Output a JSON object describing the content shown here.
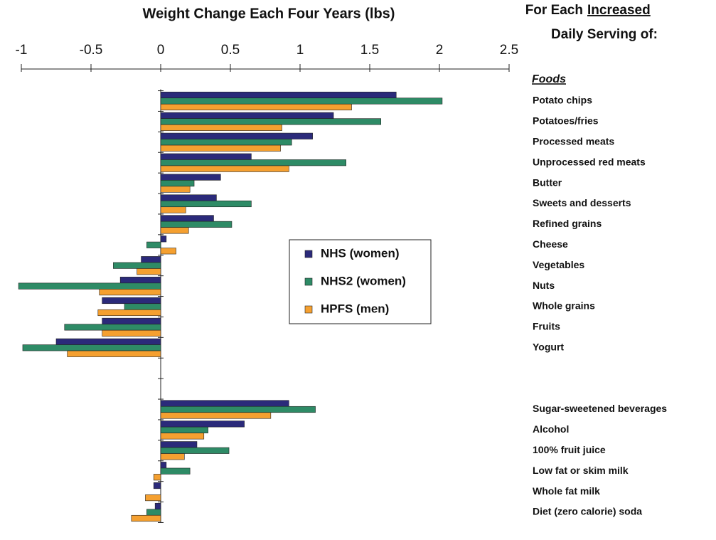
{
  "chart_data": {
    "type": "hbar",
    "title": "Weight Change Each Four Years (lbs)",
    "side_heading": [
      "For Each",
      "Increased",
      "Daily Serving of:"
    ],
    "group_label": "Foods",
    "categories": [
      "Potato chips",
      "Potatoes/fries",
      "Processed meats",
      "Unprocessed red meats",
      "Butter",
      "Sweets and desserts",
      "Refined grains",
      "Cheese",
      "Vegetables",
      "Nuts",
      "Whole grains",
      "Fruits",
      "Yogurt",
      null,
      null,
      "Sugar-sweetened beverages",
      "Alcohol",
      "100% fruit juice",
      "Low fat or skim milk",
      "Whole fat milk",
      "Diet (zero calorie) soda"
    ],
    "series": [
      {
        "name": "NHS (women)",
        "color": "#2b2a7a",
        "values": [
          1.69,
          1.24,
          1.09,
          0.65,
          0.43,
          0.4,
          0.38,
          0.04,
          -0.14,
          -0.29,
          -0.42,
          -0.42,
          -0.75,
          null,
          null,
          0.92,
          0.6,
          0.26,
          0.04,
          -0.05,
          -0.04
        ]
      },
      {
        "name": "NHS2 (women)",
        "color": "#2e8b66",
        "values": [
          2.02,
          1.58,
          0.94,
          1.33,
          0.24,
          0.65,
          0.51,
          -0.1,
          -0.34,
          -1.02,
          -0.26,
          -0.69,
          -0.99,
          null,
          null,
          1.11,
          0.34,
          0.49,
          0.21,
          0,
          -0.1
        ]
      },
      {
        "name": "HPFS (men)",
        "color": "#f5a030",
        "values": [
          1.37,
          0.87,
          0.86,
          0.92,
          0.21,
          0.18,
          0.2,
          0.11,
          -0.17,
          -0.44,
          -0.45,
          -0.42,
          -0.67,
          null,
          null,
          0.79,
          0.31,
          0.17,
          -0.05,
          -0.11,
          -0.21
        ]
      }
    ],
    "xlim": [
      -1,
      2.5
    ],
    "xticks": [
      -1,
      -0.5,
      0,
      0.5,
      1,
      1.5,
      2,
      2.5
    ]
  }
}
